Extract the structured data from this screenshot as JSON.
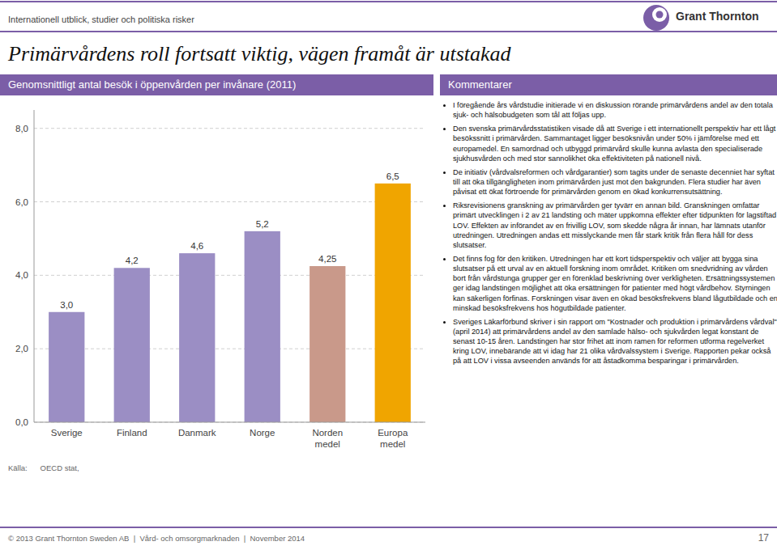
{
  "page_title": "Primärvårdens roll fortsatt viktig, vägen framåt är utstakad",
  "subtitle": "Internationell utblick, studier och politiska risker",
  "logo_text": "Grant Thornton",
  "comment_title": "Kommentarer",
  "comment_lines": [
    "I föregående års vårdstudie initierade vi en diskussion rörande primärvårdens andel av den totala sjuk- och hälsobudgeten som tål att följas upp.",
    "Den svenska primärvårdsstatistiken visade då att Sverige i ett internationellt perspektiv har ett lågt besökssnitt i primärvården. Sammantaget ligger besöksnivån under 50% i jämförelse med ett europamedel. En samordnad och utbyggd primärvård skulle kunna avlasta den specialiserade sjukhusvården och med  stor sannolikhet öka effektiviteten på nationell nivå.",
    "De initiativ (vårdvalsreformen och vårdgarantier) som tagits under de senaste decenniet har syftat till att öka tillgängligheten inom primärvården just mot den bakgrunden. Flera studier har även påvisat ett ökat förtroende för primärvården genom en ökad konkurrensutsättning.",
    "Riksrevisionens granskning av primärvården ger tyvärr en annan bild. Granskningen omfattar primärt utvecklingen i 2 av 21 landsting och mäter uppkomna effekter efter tidpunkten för lagstiftad LOV. Effekten av införandet av en frivillig LOV, som skedde några år innan, har lämnats utanför utredningen. Utredningen andas ett misslyckande men får stark kritik från flera håll för dess slutsatser.",
    "Det finns fog för den kritiken. Utredningen har ett kort tidsperspektiv och väljer att bygga sina slutsatser på ett urval av en aktuell forskning inom området. Kritiken om snedvridning av vården bort från vårdstunga grupper ger en förenklad beskrivning över verkligheten. Ersättningssystemen ger idag landstingen möjlighet att öka ersättningen för patienter med högt vårdbehov. Styrningen kan säkerligen förfinas. Forskningen visar även en ökad besöksfrekvens bland lågutbildade och en minskad besöksfrekvens hos högutbildade patienter.",
    "Sveriges Läkarförbund skriver i sin rapport om \"Kostnader och produktion i primärvårdens vårdval\" (april 2014) att primärvårdens andel av den samlade hälso- och sjukvården legat konstant de senast 10-15 åren. Landstingen har stor frihet att inom ramen för reformen utforma regelverket kring LOV, innebärande att vi idag har 21 olika vårdvalssystem i Sverige. Rapporten pekar också på att LOV i vissa avseenden används för att åstadkomma besparingar i primärvården."
  ],
  "source_text": "Källa:      OECD stat,",
  "footer_text": "© 2013 Grant Thornton Sweden AB  |  Vård- och omsorgmarknaden  |  November 2014",
  "page_number": "17",
  "chart_data": {
    "type": "bar",
    "title": "Genomsnittligt antal besök i öppenvården per invånare (2011)",
    "categories": [
      "Sverige",
      "Finland",
      "Danmark",
      "Norge",
      "Norden\nmedel",
      "Europa\nmedel"
    ],
    "values": [
      3.0,
      4.2,
      4.6,
      5.2,
      4.25,
      6.5
    ],
    "value_labels": [
      "3,0",
      "4,2",
      "4,6",
      "5,2",
      "4,25",
      "6,5"
    ],
    "colors": [
      "#9b8ec4",
      "#9b8ec4",
      "#9b8ec4",
      "#9b8ec4",
      "#c9998a",
      "#f0a500"
    ],
    "ylim": [
      0,
      8.5
    ],
    "yticks": [
      {
        "value": 0.0,
        "label": "0,0"
      },
      {
        "value": 2.0,
        "label": "2,0"
      },
      {
        "value": 4.0,
        "label": "4,0"
      },
      {
        "value": 6.0,
        "label": "6,0"
      },
      {
        "value": 8.0,
        "label": "8,0"
      }
    ],
    "grid": true,
    "data_labels": true
  }
}
